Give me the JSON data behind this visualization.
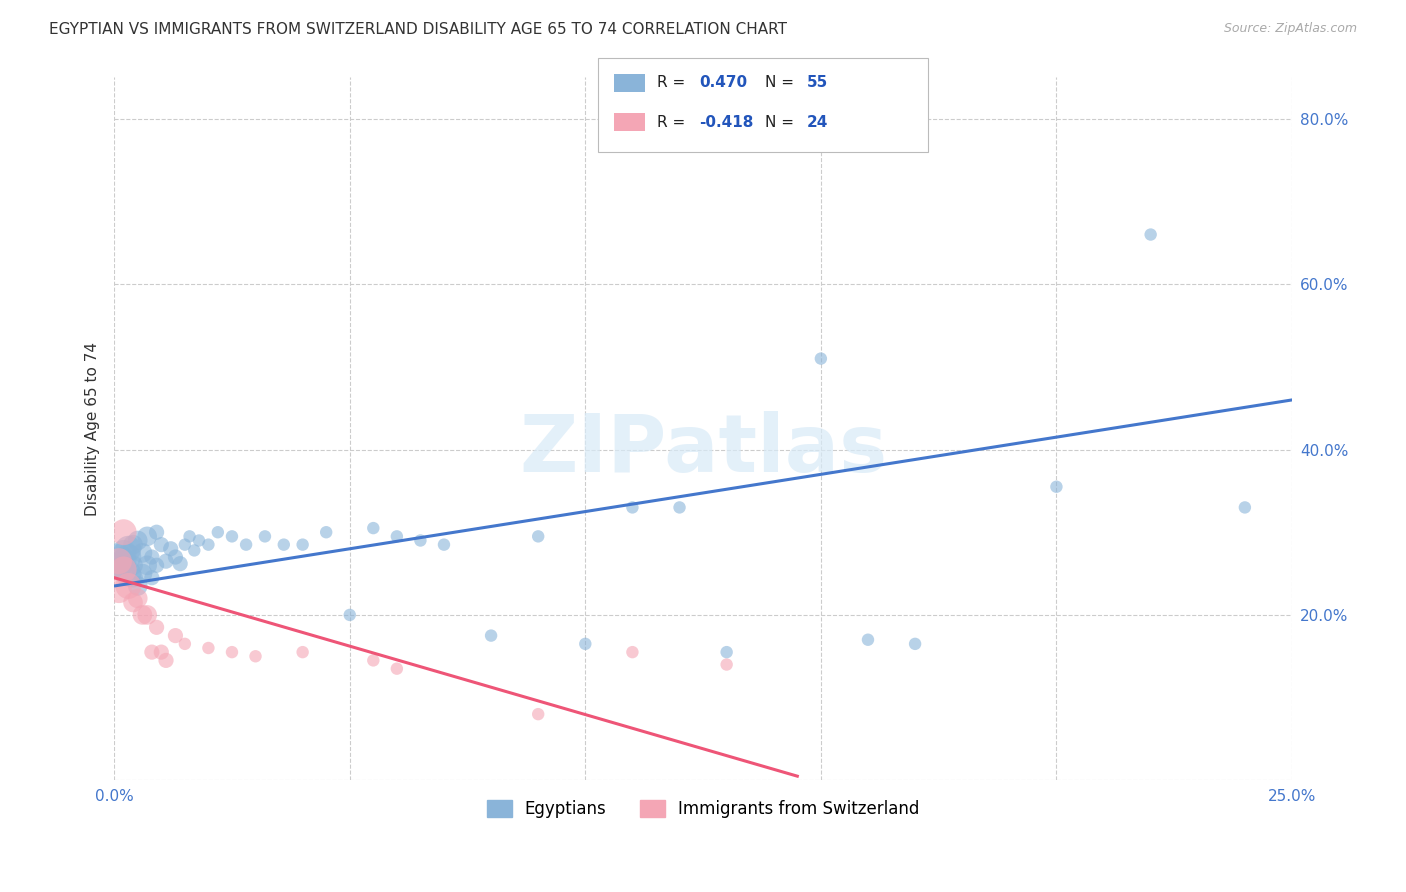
{
  "title": "EGYPTIAN VS IMMIGRANTS FROM SWITZERLAND DISABILITY AGE 65 TO 74 CORRELATION CHART",
  "source": "Source: ZipAtlas.com",
  "ylabel": "Disability Age 65 to 74",
  "x_min": 0.0,
  "x_max": 0.25,
  "y_min": 0.0,
  "y_max": 0.85,
  "x_ticks": [
    0.0,
    0.05,
    0.1,
    0.15,
    0.2,
    0.25
  ],
  "y_ticks": [
    0.0,
    0.2,
    0.4,
    0.6,
    0.8
  ],
  "grid_color": "#cccccc",
  "background_color": "#ffffff",
  "blue_color": "#8ab4d9",
  "pink_color": "#f4a6b5",
  "blue_line_color": "#4477cc",
  "pink_line_color": "#ee5577",
  "tick_color": "#4477cc",
  "blue_label": "Egyptians",
  "pink_label": "Immigrants from Switzerland",
  "R_blue": 0.47,
  "N_blue": 55,
  "R_pink": -0.418,
  "N_pink": 24,
  "legend_value_color": "#2255bb",
  "watermark": "ZIPatlas",
  "blue_points_x": [
    0.001,
    0.001,
    0.002,
    0.002,
    0.002,
    0.003,
    0.003,
    0.003,
    0.004,
    0.004,
    0.004,
    0.005,
    0.005,
    0.006,
    0.006,
    0.007,
    0.007,
    0.008,
    0.008,
    0.009,
    0.009,
    0.01,
    0.011,
    0.012,
    0.013,
    0.014,
    0.015,
    0.016,
    0.017,
    0.018,
    0.02,
    0.022,
    0.025,
    0.028,
    0.032,
    0.036,
    0.04,
    0.045,
    0.05,
    0.055,
    0.06,
    0.065,
    0.07,
    0.08,
    0.09,
    0.1,
    0.11,
    0.12,
    0.13,
    0.15,
    0.16,
    0.17,
    0.2,
    0.22,
    0.24
  ],
  "blue_points_y": [
    0.27,
    0.26,
    0.275,
    0.255,
    0.265,
    0.28,
    0.25,
    0.27,
    0.285,
    0.245,
    0.26,
    0.29,
    0.235,
    0.275,
    0.25,
    0.295,
    0.26,
    0.27,
    0.245,
    0.3,
    0.26,
    0.285,
    0.265,
    0.28,
    0.27,
    0.262,
    0.285,
    0.295,
    0.278,
    0.29,
    0.285,
    0.3,
    0.295,
    0.285,
    0.295,
    0.285,
    0.285,
    0.3,
    0.2,
    0.305,
    0.295,
    0.29,
    0.285,
    0.175,
    0.295,
    0.165,
    0.33,
    0.33,
    0.155,
    0.51,
    0.17,
    0.165,
    0.355,
    0.66,
    0.33
  ],
  "pink_points_x": [
    0.001,
    0.001,
    0.002,
    0.002,
    0.003,
    0.004,
    0.005,
    0.006,
    0.007,
    0.008,
    0.009,
    0.01,
    0.011,
    0.013,
    0.015,
    0.02,
    0.025,
    0.03,
    0.04,
    0.055,
    0.06,
    0.09,
    0.11,
    0.13
  ],
  "pink_points_y": [
    0.265,
    0.23,
    0.3,
    0.255,
    0.235,
    0.215,
    0.22,
    0.2,
    0.2,
    0.155,
    0.185,
    0.155,
    0.145,
    0.175,
    0.165,
    0.16,
    0.155,
    0.15,
    0.155,
    0.145,
    0.135,
    0.08,
    0.155,
    0.14
  ],
  "blue_trend_x": [
    0.0,
    0.25
  ],
  "blue_trend_y": [
    0.235,
    0.46
  ],
  "pink_trend_x": [
    0.0,
    0.145
  ],
  "pink_trend_y": [
    0.245,
    0.005
  ]
}
